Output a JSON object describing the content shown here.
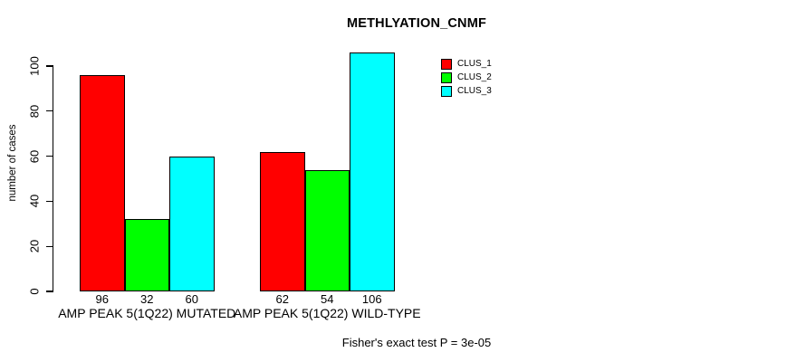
{
  "chart_data": {
    "type": "bar",
    "title": "METHLYATION_CNMF",
    "ylabel": "number of cases",
    "xlabel": "",
    "ylim": [
      0,
      100
    ],
    "yticks": [
      0,
      20,
      40,
      60,
      80,
      100
    ],
    "grid": false,
    "legend_position": "top-right",
    "categories": [
      "AMP PEAK 5(1Q22) MUTATED",
      "AMP PEAK 5(1Q22) WILD-TYPE"
    ],
    "groups": [
      {
        "label": "AMP PEAK 5(1Q22) MUTATED",
        "values": [
          96,
          32,
          60
        ]
      },
      {
        "label": "AMP PEAK 5(1Q22) WILD-TYPE",
        "values": [
          62,
          54,
          106
        ]
      }
    ],
    "series": [
      {
        "name": "CLUS_1",
        "color": "#ff0000"
      },
      {
        "name": "CLUS_2",
        "color": "#00ff00"
      },
      {
        "name": "CLUS_3",
        "color": "#00ffff"
      }
    ],
    "bar_value_labels": [
      96,
      32,
      60,
      62,
      54,
      106
    ],
    "footnote": "Fisher's exact test P = 3e-05",
    "colors": {
      "background": "#ffffff",
      "axis": "#000000",
      "text": "#000000"
    }
  }
}
